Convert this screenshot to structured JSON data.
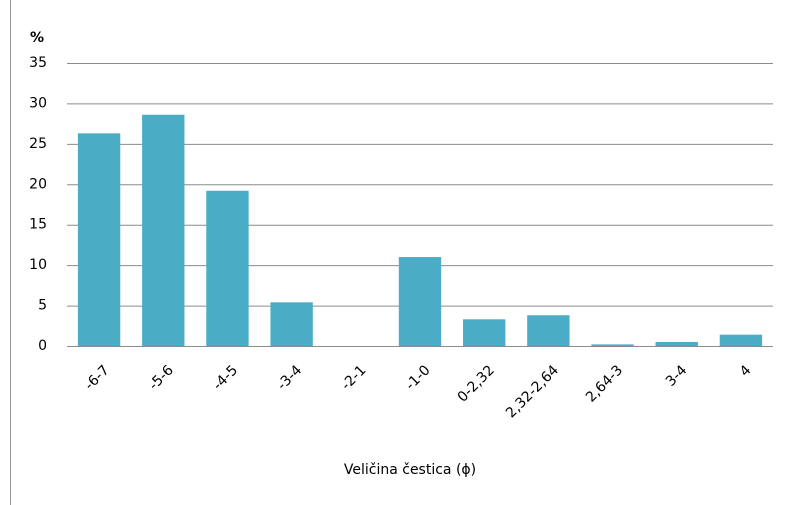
{
  "chart_data": {
    "type": "bar",
    "y_unit_label": "%",
    "x_axis_label": "Veličina čestica (ϕ)",
    "categories": [
      "-6-7",
      "-5-6",
      "-4-5",
      "-3-4",
      "-2-1",
      "-1-0",
      "0-2,32",
      "2,32-2,64",
      "2,64-3",
      "3-4",
      "4"
    ],
    "values": [
      26.3,
      28.6,
      19.2,
      5.4,
      0,
      11.0,
      3.3,
      3.8,
      0.2,
      0.5,
      1.4
    ],
    "color": "#4bacc6",
    "ylim": [
      0,
      35
    ],
    "yticks": [
      0,
      5,
      10,
      15,
      20,
      25,
      30,
      35
    ],
    "grid": true
  }
}
